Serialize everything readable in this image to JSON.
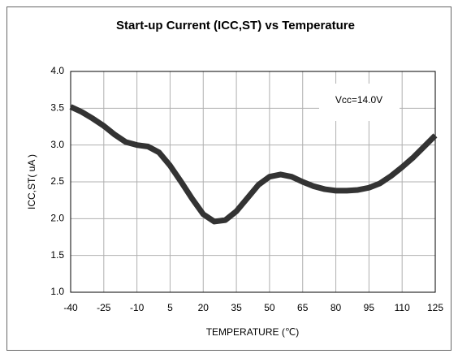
{
  "chart_data": {
    "type": "line",
    "title": "Start-up Current (ICC,ST) vs Temperature",
    "xlabel": "TEMPERATURE (℃)",
    "ylabel": "ICC,ST( uA )",
    "annotation": "Vcc=14.0V",
    "x": [
      -40,
      -35,
      -30,
      -25,
      -20,
      -15,
      -10,
      -5,
      0,
      5,
      10,
      15,
      20,
      25,
      30,
      35,
      40,
      45,
      50,
      55,
      60,
      65,
      70,
      75,
      80,
      85,
      90,
      95,
      100,
      105,
      110,
      115,
      120,
      125
    ],
    "values": [
      3.52,
      3.45,
      3.36,
      3.26,
      3.14,
      3.04,
      3.0,
      2.98,
      2.9,
      2.72,
      2.5,
      2.27,
      2.06,
      1.96,
      1.98,
      2.1,
      2.28,
      2.46,
      2.57,
      2.6,
      2.57,
      2.5,
      2.44,
      2.4,
      2.38,
      2.38,
      2.39,
      2.42,
      2.48,
      2.58,
      2.7,
      2.83,
      2.98,
      3.13
    ],
    "color": "#333333",
    "xlim": [
      -40,
      125
    ],
    "xticks": [
      -40,
      -25,
      -10,
      5,
      20,
      35,
      50,
      65,
      80,
      95,
      110,
      125
    ],
    "ylim": [
      1.0,
      4.0
    ],
    "yticks": [
      {
        "value": 1.0,
        "label": "1.0"
      },
      {
        "value": 1.5,
        "label": "1.5"
      },
      {
        "value": 2.0,
        "label": "2.0"
      },
      {
        "value": 2.5,
        "label": "2.5"
      },
      {
        "value": 3.0,
        "label": "3.0"
      },
      {
        "value": 3.5,
        "label": "3.5"
      },
      {
        "value": 4.0,
        "label": "4.0"
      }
    ],
    "grid": true
  }
}
